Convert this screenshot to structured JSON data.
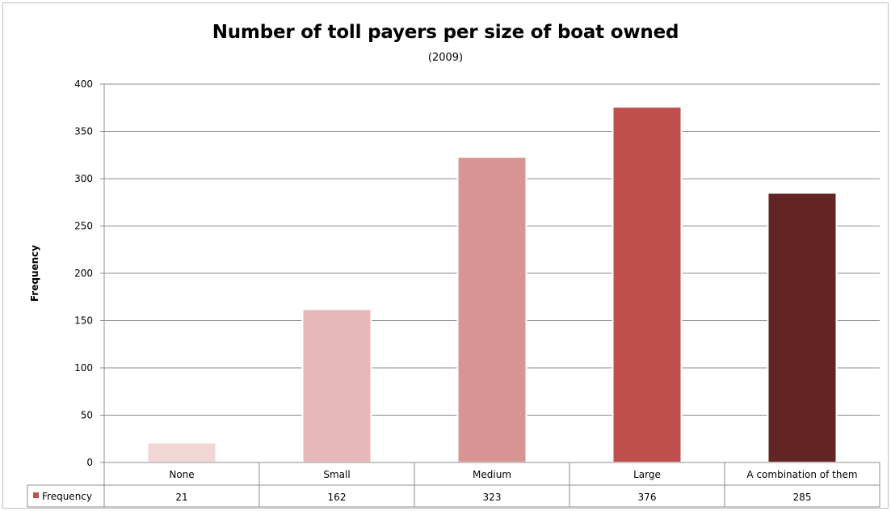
{
  "chart_data": {
    "type": "bar",
    "title": "Number of toll payers per size of boat owned",
    "subtitle": "(2009)",
    "ylabel": "Frequency",
    "xlabel": "",
    "categories": [
      "None",
      "Small",
      "Medium",
      "Large",
      "A combination of them"
    ],
    "series": [
      {
        "name": "Frequency",
        "values": [
          21,
          162,
          323,
          376,
          285
        ]
      }
    ],
    "bar_colors": [
      "#f2d5d5",
      "#e6b8b7",
      "#d99594",
      "#c0504d",
      "#632523"
    ],
    "legend_color": "#c0504d",
    "ylim": [
      0,
      400
    ],
    "yticks": [
      0,
      50,
      100,
      150,
      200,
      250,
      300,
      350,
      400
    ],
    "grid": true,
    "data_table": true
  }
}
